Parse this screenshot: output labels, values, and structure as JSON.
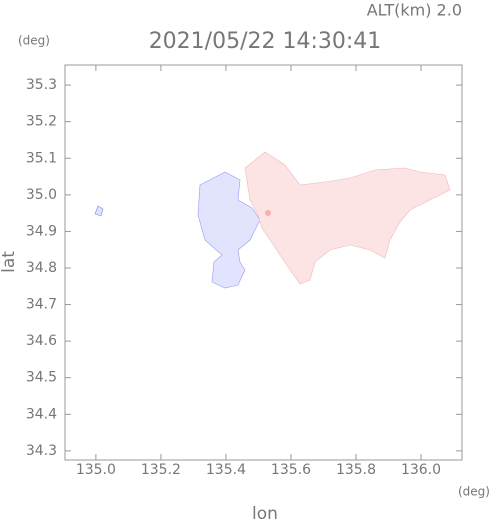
{
  "chart_data": {
    "type": "map",
    "title": "2021/05/22 14:30:41",
    "subtitle": "ALT(km) 2.0",
    "x_label": "lon",
    "x_unit": "(deg)",
    "y_label": "lat",
    "y_unit": "(deg)",
    "xlim": [
      134.905,
      136.126
    ],
    "ylim": [
      34.275,
      35.355
    ],
    "xticks": [
      {
        "value": 135.0,
        "label": "135.0"
      },
      135.2,
      135.4,
      135.6,
      135.8,
      {
        "value": 136.0,
        "label": "136.0"
      }
    ],
    "yticks": [
      34.3,
      34.4,
      34.5,
      34.6,
      34.7,
      34.8,
      34.9,
      {
        "value": 35.0,
        "label": "35.0"
      },
      35.1,
      35.2,
      35.3
    ]
  }
}
